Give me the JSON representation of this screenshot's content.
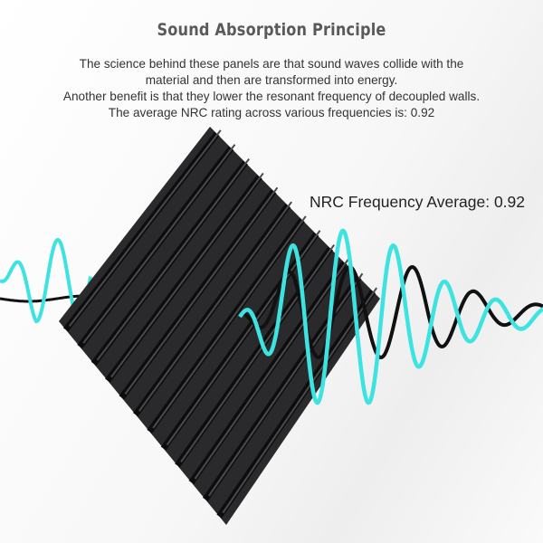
{
  "title": "Sound Absorption Principle",
  "description": [
    "The science behind these panels are that sound waves collide with the",
    "material and then are transformed into energy.",
    "Another benefit is that they lower the resonant frequency of decoupled walls.",
    "The average NRC rating across various frequencies is: 0.92"
  ],
  "nrc_label": "NRC Frequency Average: 0.92",
  "colors": {
    "wave_cyan": "#3de3e0",
    "wave_black": "#111111",
    "foam": "#2a2a2c"
  }
}
